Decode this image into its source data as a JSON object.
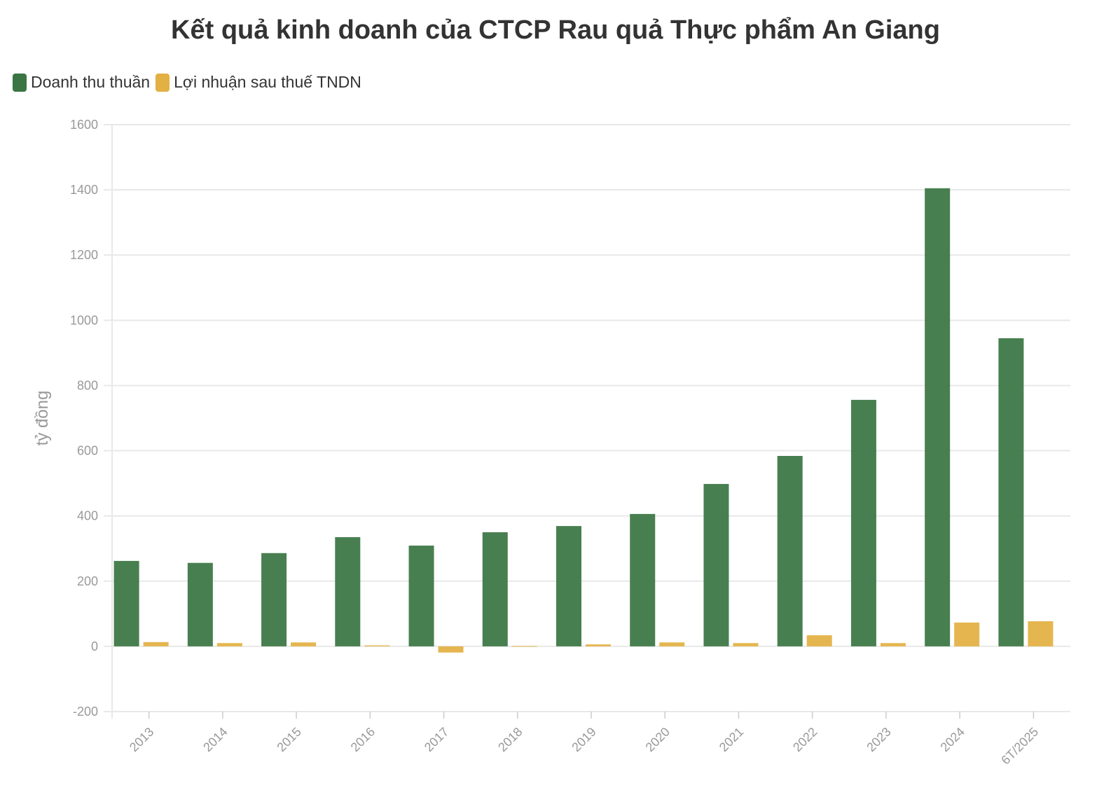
{
  "chart_data": {
    "type": "bar",
    "title": "Kết quả kinh doanh của CTCP Rau quả Thực phẩm An Giang",
    "ylabel": "tỷ đồng",
    "xlabel": "",
    "ylim": [
      -200,
      1600
    ],
    "yticks": [
      -200,
      0,
      200,
      400,
      600,
      800,
      1000,
      1200,
      1400,
      1600
    ],
    "grid": true,
    "legend_position": "top-left",
    "categories": [
      "2013",
      "2014",
      "2015",
      "2016",
      "2017",
      "2018",
      "2019",
      "2020",
      "2021",
      "2022",
      "2023",
      "2024",
      "6T/2025"
    ],
    "series": [
      {
        "name": "Doanh thu thuần",
        "color": "#3a7543",
        "values": [
          262,
          256,
          286,
          335,
          309,
          350,
          369,
          406,
          498,
          584,
          756,
          1405,
          945
        ]
      },
      {
        "name": "Lợi nhuận sau thuế TNDN",
        "color": "#e3b043",
        "values": [
          13,
          10,
          12,
          3,
          -19,
          1,
          6,
          12,
          10,
          34,
          10,
          73,
          77
        ]
      }
    ]
  }
}
